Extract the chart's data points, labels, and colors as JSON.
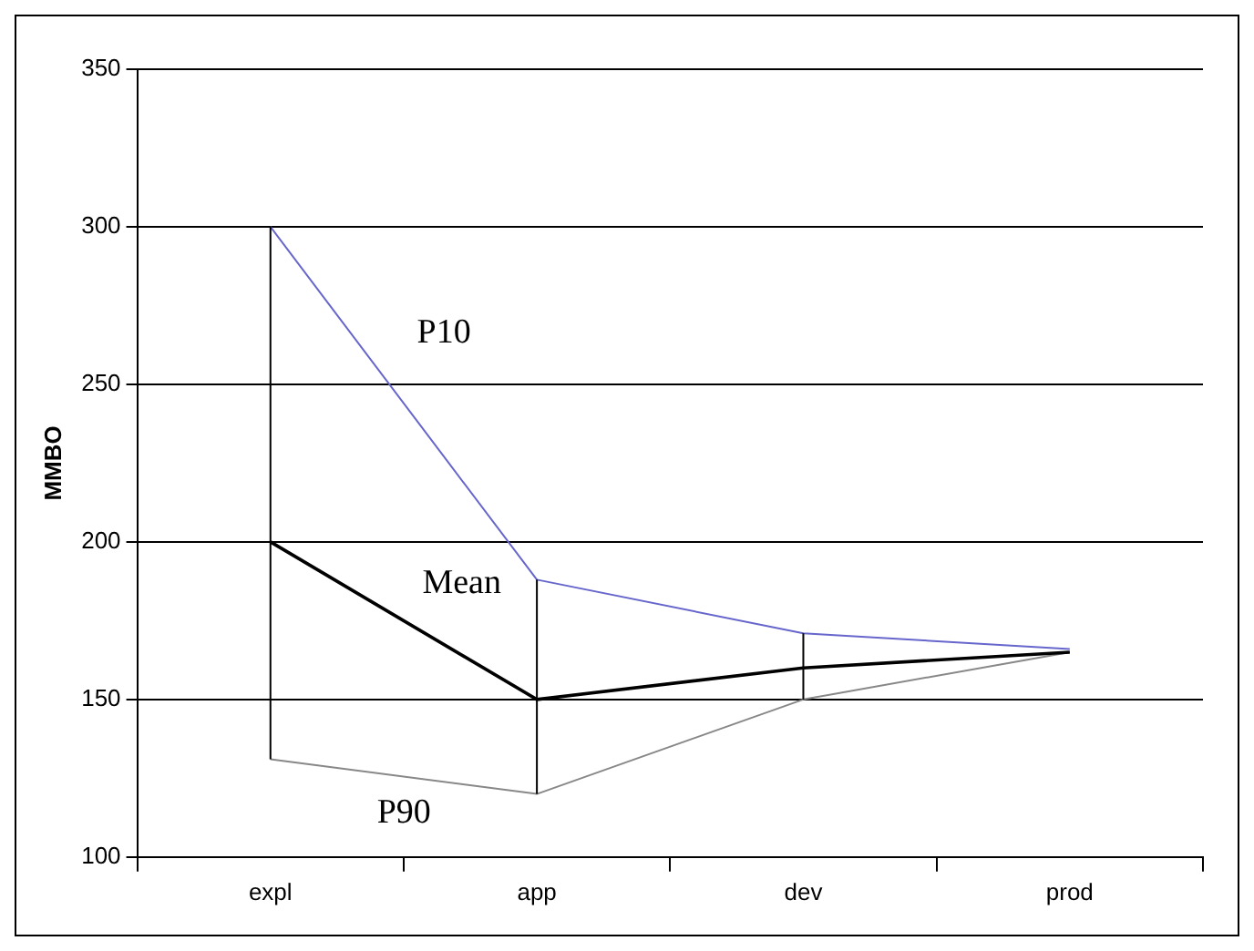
{
  "chart_data": {
    "type": "line",
    "ylabel": "MMBO",
    "categories": [
      "expl",
      "app",
      "dev",
      "prod"
    ],
    "ylim": [
      100,
      350
    ],
    "yticks": [
      100,
      150,
      200,
      250,
      300,
      350
    ],
    "grid": "y",
    "marker": "none",
    "series": [
      {
        "name": "P10",
        "color": "#6666cc",
        "values": [
          300,
          188,
          171,
          166
        ]
      },
      {
        "name": "Mean",
        "color": "#000000",
        "values": [
          200,
          150,
          160,
          165
        ],
        "errors": [
          [
            131,
            300
          ],
          [
            120,
            188
          ],
          [
            150,
            171
          ],
          null
        ]
      },
      {
        "name": "P90",
        "color": "#888888",
        "values": [
          131,
          120,
          150,
          165
        ]
      }
    ]
  }
}
